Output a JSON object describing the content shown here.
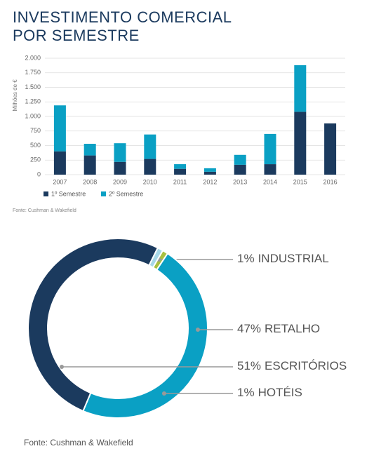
{
  "chart_data": [
    {
      "type": "bar",
      "title": "INVESTIMENTO COMERCIAL POR SEMESTRE",
      "y_label": "Milhões de €",
      "categories": [
        "2007",
        "2008",
        "2009",
        "2010",
        "2011",
        "2012",
        "2013",
        "2014",
        "2015",
        "2016"
      ],
      "series": [
        {
          "name": "1º Semestre",
          "color": "#1b3a5e",
          "values": [
            400,
            330,
            220,
            270,
            100,
            50,
            170,
            180,
            1080,
            880
          ]
        },
        {
          "name": "2º Semestre",
          "color": "#0aa0c4",
          "values": [
            790,
            200,
            320,
            420,
            80,
            60,
            170,
            520,
            800,
            null
          ]
        }
      ],
      "stacked": true,
      "ylim": [
        0,
        2000
      ],
      "yticks": [
        0,
        250,
        500,
        750,
        {
          "value": 1000,
          "label": "1.000"
        },
        {
          "value": 1250,
          "label": "1.250"
        },
        {
          "value": 1500,
          "label": "1.500"
        },
        {
          "value": 1750,
          "label": "1.750"
        },
        {
          "value": 2000,
          "label": "2.000"
        }
      ],
      "grid": true,
      "source": "Fonte: Cushman & Wakefield"
    },
    {
      "type": "pie",
      "donut": true,
      "categories": [
        "INDUSTRIAL",
        "RETALHO",
        "ESCRITÓRIOS",
        "HOTÉIS"
      ],
      "values": [
        1,
        47,
        51,
        1
      ],
      "value_labels": [
        "1%",
        "47%",
        "51%",
        "1%"
      ],
      "colors": [
        "#a8c040",
        "#0aa0c4",
        "#1b3a5e",
        "#a6d8e8"
      ],
      "source": "Fonte: Cushman & Wakefield"
    }
  ]
}
